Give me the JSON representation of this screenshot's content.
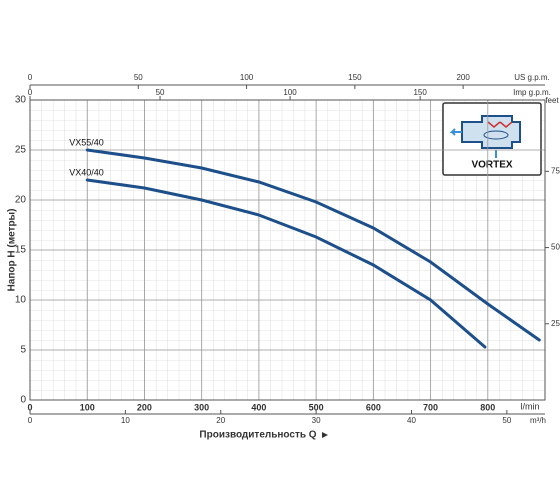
{
  "chart_data": {
    "type": "line",
    "x_label": "Производительность Q",
    "y_label": "Напор H (метры)",
    "x_unit": "l/min",
    "xlim": [
      0,
      900
    ],
    "xticks": [
      0,
      100,
      200,
      300,
      400,
      500,
      600,
      700,
      800
    ],
    "ylim": [
      0,
      30
    ],
    "yticks": [
      0,
      5,
      10,
      15,
      20,
      25,
      30
    ],
    "x2label": "US g.p.m.",
    "x2lim": [
      0,
      237.8
    ],
    "x2ticks": [
      0,
      50,
      100,
      150,
      200
    ],
    "x3label": "Imp g.p.m.",
    "x3lim": [
      0,
      198
    ],
    "x3ticks": [
      0,
      50,
      100,
      150
    ],
    "x4label": "m³/h",
    "x4lim": [
      0,
      54
    ],
    "x4ticks": [
      0,
      10,
      20,
      30,
      40,
      50
    ],
    "y2label": "feet",
    "y2lim": [
      0,
      98.4
    ],
    "y2ticks": [
      25,
      50,
      75
    ],
    "grid": true,
    "inset_label": "VORTEX",
    "series": [
      {
        "name": "VX55/40",
        "color": "#1d4f8a",
        "x": [
          100,
          200,
          300,
          400,
          500,
          600,
          700,
          800,
          890
        ],
        "values": [
          25,
          24.2,
          23.2,
          21.8,
          19.8,
          17.2,
          13.8,
          9.6,
          6
        ]
      },
      {
        "name": "VX40/40",
        "color": "#1d4f8a",
        "x": [
          100,
          200,
          300,
          400,
          500,
          600,
          700,
          795
        ],
        "values": [
          22,
          21.2,
          20,
          18.5,
          16.3,
          13.5,
          10,
          5.3
        ]
      }
    ]
  }
}
